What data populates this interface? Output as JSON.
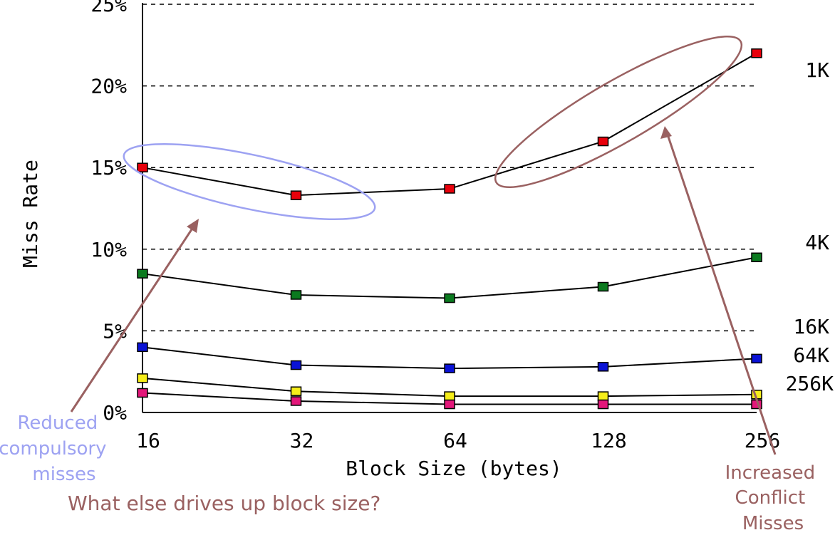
{
  "chart_data": {
    "type": "line",
    "title": "",
    "xlabel": "Block Size (bytes)",
    "ylabel": "Miss Rate",
    "categories": [
      "16",
      "32",
      "64",
      "128",
      "256"
    ],
    "ylim": [
      0,
      25
    ],
    "yticks": [
      "0%",
      "5%",
      "10%",
      "15%",
      "20%",
      "25%"
    ],
    "grid": "horizontal dashed",
    "series": [
      {
        "name": "1K",
        "values": [
          15.0,
          13.3,
          13.7,
          16.6,
          22.0
        ],
        "color": "#e8000b"
      },
      {
        "name": "4K",
        "values": [
          8.5,
          7.2,
          7.0,
          7.7,
          9.5
        ],
        "color": "#0b7a1f"
      },
      {
        "name": "16K",
        "values": [
          4.0,
          2.9,
          2.7,
          2.8,
          3.3
        ],
        "color": "#0a12d6"
      },
      {
        "name": "64K",
        "values": [
          2.1,
          1.3,
          1.0,
          1.0,
          1.1
        ],
        "color": "#f6ee1a"
      },
      {
        "name": "256K",
        "values": [
          1.2,
          0.7,
          0.5,
          0.5,
          0.5
        ],
        "color": "#e3177a"
      }
    ],
    "annotations": {
      "left_callout": "Reduced\ncompulsory\nmisses",
      "right_callout": "Increased\nConflict\nMisses",
      "question": "What else drives up block size?"
    }
  },
  "colors": {
    "left_annotation": "#9da2f2",
    "right_annotation": "#9a6161",
    "axis": "#000000",
    "grid": "#000000"
  }
}
